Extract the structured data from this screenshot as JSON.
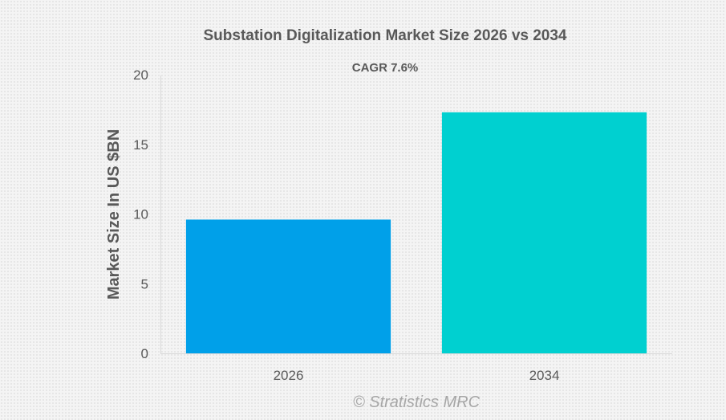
{
  "chart_data": {
    "type": "bar",
    "title": "Substation Digitalization Market Size 2026 vs 2034",
    "subtitle": "CAGR 7.6%",
    "xlabel": "",
    "ylabel": "Market Size In US $BN",
    "categories": [
      "2026",
      "2034"
    ],
    "values": [
      9.6,
      17.3
    ],
    "colors": [
      "#00a0e9",
      "#00d0d0"
    ],
    "ylim": [
      0,
      20
    ],
    "yticks": [
      0,
      5,
      10,
      15,
      20
    ],
    "grid": false,
    "legend": "none",
    "credit": "© Stratistics MRC"
  }
}
